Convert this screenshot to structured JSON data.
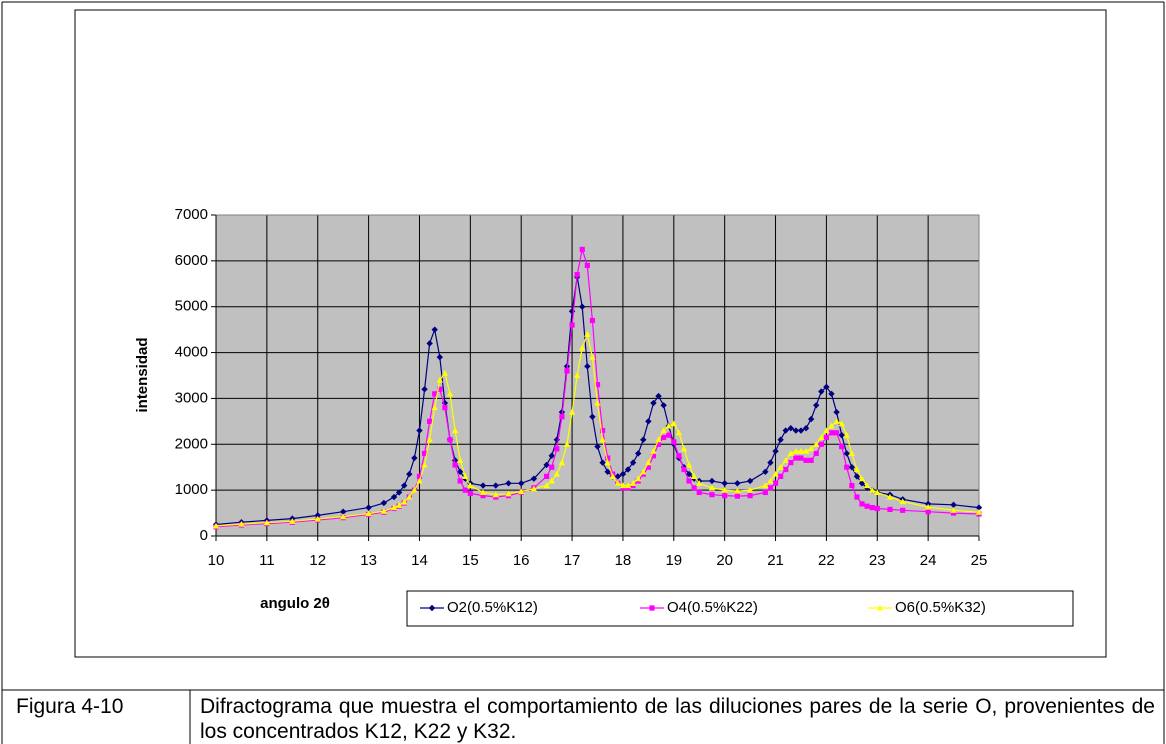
{
  "chart_data": {
    "type": "line",
    "x_label": "angulo 2θ",
    "y_label": "intensidad",
    "xlim": [
      10,
      25
    ],
    "xticks": [
      10,
      11,
      12,
      13,
      14,
      15,
      16,
      17,
      18,
      19,
      20,
      21,
      22,
      23,
      24,
      25
    ],
    "ylim": [
      0,
      7000
    ],
    "yticks": [
      0,
      1000,
      2000,
      3000,
      4000,
      5000,
      6000,
      7000
    ],
    "grid": true,
    "legend": "bottom",
    "x": [
      10,
      10.5,
      11,
      11.5,
      12,
      12.5,
      13,
      13.3,
      13.5,
      13.6,
      13.7,
      13.8,
      13.9,
      14.0,
      14.1,
      14.2,
      14.3,
      14.4,
      14.5,
      14.6,
      14.7,
      14.8,
      14.9,
      15.0,
      15.25,
      15.5,
      15.75,
      16,
      16.25,
      16.5,
      16.6,
      16.7,
      16.8,
      16.9,
      17.0,
      17.1,
      17.2,
      17.3,
      17.4,
      17.5,
      17.6,
      17.7,
      17.8,
      17.9,
      18.0,
      18.1,
      18.2,
      18.3,
      18.4,
      18.5,
      18.6,
      18.7,
      18.8,
      18.9,
      19.0,
      19.1,
      19.2,
      19.3,
      19.4,
      19.5,
      19.75,
      20,
      20.25,
      20.5,
      20.8,
      20.9,
      21.0,
      21.1,
      21.2,
      21.3,
      21.4,
      21.5,
      21.6,
      21.7,
      21.8,
      21.9,
      22.0,
      22.1,
      22.2,
      22.3,
      22.4,
      22.5,
      22.6,
      22.7,
      22.8,
      22.9,
      23.0,
      23.25,
      23.5,
      24,
      24.5,
      25
    ],
    "series": [
      {
        "name": "O2(0.5%K12)",
        "color": "#000080",
        "marker": "diamond",
        "values": [
          250,
          300,
          340,
          380,
          450,
          530,
          620,
          720,
          850,
          950,
          1100,
          1350,
          1700,
          2300,
          3200,
          4200,
          4500,
          3900,
          2900,
          2100,
          1650,
          1400,
          1250,
          1150,
          1100,
          1100,
          1150,
          1150,
          1250,
          1550,
          1750,
          2100,
          2700,
          3700,
          4900,
          5650,
          5000,
          3700,
          2600,
          1950,
          1600,
          1400,
          1300,
          1300,
          1350,
          1450,
          1600,
          1800,
          2100,
          2500,
          2900,
          3050,
          2850,
          2400,
          2000,
          1700,
          1500,
          1350,
          1250,
          1200,
          1200,
          1150,
          1150,
          1200,
          1400,
          1600,
          1850,
          2100,
          2300,
          2350,
          2300,
          2300,
          2350,
          2550,
          2850,
          3150,
          3250,
          3100,
          2700,
          2200,
          1800,
          1500,
          1300,
          1150,
          1050,
          1000,
          950,
          900,
          800,
          700,
          680,
          620
        ]
      },
      {
        "name": "O4(0.5%K22)",
        "color": "#ff00ff",
        "marker": "square",
        "values": [
          200,
          240,
          270,
          300,
          350,
          400,
          470,
          520,
          600,
          650,
          720,
          850,
          1000,
          1300,
          1800,
          2500,
          3100,
          3200,
          2800,
          2100,
          1550,
          1200,
          1000,
          930,
          880,
          850,
          880,
          950,
          1050,
          1300,
          1500,
          1900,
          2600,
          3600,
          4600,
          5700,
          6250,
          5900,
          4700,
          3300,
          2300,
          1700,
          1350,
          1150,
          1050,
          1050,
          1100,
          1200,
          1350,
          1500,
          1750,
          2000,
          2150,
          2200,
          2050,
          1750,
          1450,
          1200,
          1050,
          950,
          900,
          880,
          870,
          880,
          950,
          1050,
          1150,
          1300,
          1450,
          1600,
          1700,
          1700,
          1650,
          1650,
          1800,
          2000,
          2150,
          2250,
          2250,
          1950,
          1500,
          1100,
          850,
          700,
          650,
          620,
          600,
          580,
          560,
          530,
          500,
          480
        ]
      },
      {
        "name": "O6(0.5%K32)",
        "color": "#ffff00",
        "marker": "triangle",
        "values": [
          220,
          260,
          290,
          320,
          370,
          420,
          490,
          540,
          620,
          670,
          740,
          850,
          1000,
          1200,
          1550,
          2100,
          2800,
          3400,
          3550,
          3100,
          2300,
          1650,
          1300,
          1100,
          950,
          900,
          920,
          970,
          1030,
          1100,
          1200,
          1350,
          1600,
          2000,
          2700,
          3500,
          4100,
          4400,
          3900,
          2900,
          2100,
          1600,
          1300,
          1150,
          1100,
          1100,
          1150,
          1250,
          1400,
          1600,
          1850,
          2100,
          2300,
          2400,
          2450,
          2250,
          1900,
          1550,
          1300,
          1150,
          1050,
          1000,
          980,
          1000,
          1100,
          1200,
          1350,
          1500,
          1650,
          1800,
          1850,
          1850,
          1850,
          1900,
          2000,
          2150,
          2300,
          2400,
          2500,
          2450,
          2200,
          1800,
          1450,
          1250,
          1100,
          1000,
          950,
          850,
          750,
          630,
          560,
          520
        ]
      }
    ]
  },
  "caption": {
    "label": "Figura 4-10",
    "text": "Difractograma que muestra el comportamiento de las diluciones pares de la serie O, provenientes de los concentrados K12, K22 y K32."
  }
}
